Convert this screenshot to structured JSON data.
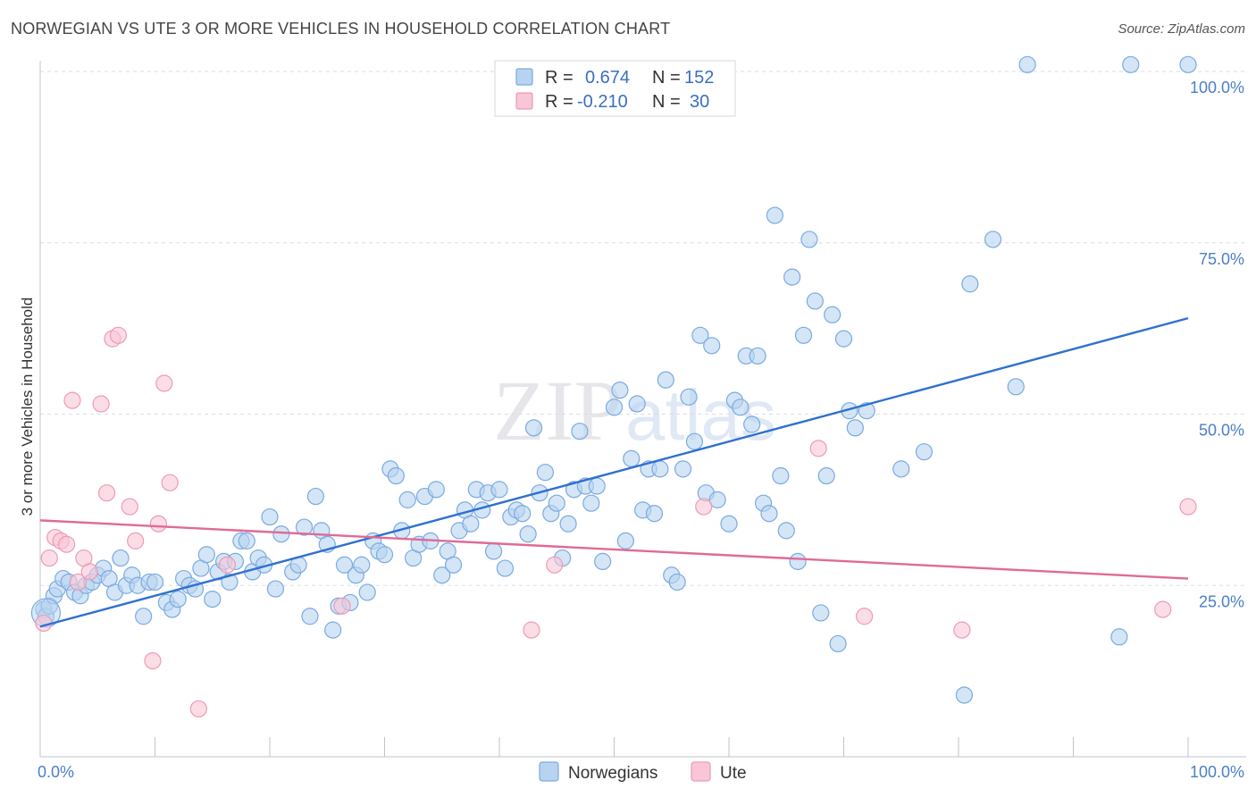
{
  "header": {
    "title": "NORWEGIAN VS UTE 3 OR MORE VEHICLES IN HOUSEHOLD CORRELATION CHART",
    "source": "Source: ZipAtlas.com"
  },
  "legend_top": {
    "rows": [
      {
        "r_label": "R =",
        "r_value": "0.674",
        "n_label": "N =",
        "n_value": "152"
      },
      {
        "r_label": "R =",
        "r_value": "-0.210",
        "n_label": "N =",
        "n_value": "30"
      }
    ]
  },
  "legend_bottom": {
    "items": [
      {
        "label": "Norwegians"
      },
      {
        "label": "Ute"
      }
    ]
  },
  "watermark": {
    "zip": "ZIP",
    "atlas": "atlas"
  },
  "colors": {
    "norwegians_fill": "#b8d3f0",
    "norwegians_stroke": "#7aaae0",
    "norwegians_line": "#2f70d0",
    "ute_fill": "#f8c6d6",
    "ute_stroke": "#ee9ab5",
    "ute_line": "#e06a95",
    "grid": "#d8dde6",
    "tick_text": "#4a7fc8"
  },
  "chart_data": {
    "type": "scatter",
    "title": "NORWEGIAN VS UTE 3 OR MORE VEHICLES IN HOUSEHOLD CORRELATION CHART",
    "xlabel": "",
    "ylabel": "3 or more Vehicles in Household",
    "xlim": [
      0,
      100
    ],
    "ylim": [
      0,
      100
    ],
    "x_tick_labels": [
      {
        "value": 0,
        "label": "0.0%"
      },
      {
        "value": 100,
        "label": "100.0%"
      }
    ],
    "y_tick_labels": [
      {
        "value": 25,
        "label": "25.0%"
      },
      {
        "value": 50,
        "label": "50.0%"
      },
      {
        "value": 75,
        "label": "75.0%"
      },
      {
        "value": 100,
        "label": "100.0%"
      }
    ],
    "grid": true,
    "legend_position": "top-center",
    "series": [
      {
        "name": "Norwegians",
        "r": 0.674,
        "n": 152,
        "trend": {
          "x": [
            0,
            100
          ],
          "y": [
            19,
            64
          ]
        },
        "points": [
          [
            0.3,
            21.5
          ],
          [
            0.5,
            20.5
          ],
          [
            0.8,
            22
          ],
          [
            1.2,
            23.5
          ],
          [
            1.5,
            24.5
          ],
          [
            2.0,
            26
          ],
          [
            2.5,
            25.5
          ],
          [
            3.0,
            24
          ],
          [
            3.5,
            23.5
          ],
          [
            4.0,
            25
          ],
          [
            4.5,
            25.5
          ],
          [
            5.0,
            26.5
          ],
          [
            5.5,
            27.5
          ],
          [
            6.0,
            26
          ],
          [
            6.5,
            24
          ],
          [
            7.0,
            29
          ],
          [
            7.5,
            25
          ],
          [
            8.0,
            26.5
          ],
          [
            8.5,
            25
          ],
          [
            9.0,
            20.5
          ],
          [
            9.5,
            25.5
          ],
          [
            10.0,
            25.5
          ],
          [
            11.0,
            22.5
          ],
          [
            11.5,
            21.5
          ],
          [
            12.0,
            23
          ],
          [
            12.5,
            26
          ],
          [
            13.0,
            25
          ],
          [
            13.5,
            24.5
          ],
          [
            14.0,
            27.5
          ],
          [
            14.5,
            29.5
          ],
          [
            15.0,
            23
          ],
          [
            15.5,
            27
          ],
          [
            16.0,
            28.5
          ],
          [
            16.5,
            25.5
          ],
          [
            17.0,
            28.5
          ],
          [
            17.5,
            31.5
          ],
          [
            18.0,
            31.5
          ],
          [
            18.5,
            27
          ],
          [
            19.0,
            29
          ],
          [
            19.5,
            28
          ],
          [
            20.0,
            35
          ],
          [
            20.5,
            24.5
          ],
          [
            21.0,
            32.5
          ],
          [
            22.0,
            27
          ],
          [
            22.5,
            28
          ],
          [
            23.0,
            33.5
          ],
          [
            23.5,
            20.5
          ],
          [
            24.0,
            38
          ],
          [
            24.5,
            33
          ],
          [
            25.0,
            31
          ],
          [
            25.5,
            18.5
          ],
          [
            26.0,
            22
          ],
          [
            26.5,
            28
          ],
          [
            27.0,
            22.5
          ],
          [
            27.5,
            26.5
          ],
          [
            28.0,
            28
          ],
          [
            28.5,
            24
          ],
          [
            29.0,
            31.5
          ],
          [
            29.5,
            30
          ],
          [
            30.0,
            29.5
          ],
          [
            30.5,
            42
          ],
          [
            31.0,
            41
          ],
          [
            31.5,
            33
          ],
          [
            32.0,
            37.5
          ],
          [
            32.5,
            29
          ],
          [
            33.0,
            31
          ],
          [
            33.5,
            38
          ],
          [
            34.0,
            31.5
          ],
          [
            34.5,
            39
          ],
          [
            35.0,
            26.5
          ],
          [
            35.5,
            30
          ],
          [
            36.0,
            28
          ],
          [
            36.5,
            33
          ],
          [
            37.0,
            36
          ],
          [
            37.5,
            34
          ],
          [
            38.0,
            39
          ],
          [
            38.5,
            36
          ],
          [
            39.0,
            38.5
          ],
          [
            39.5,
            30
          ],
          [
            40.0,
            39
          ],
          [
            40.5,
            27.5
          ],
          [
            41.0,
            35
          ],
          [
            41.5,
            36
          ],
          [
            42.0,
            35.5
          ],
          [
            42.5,
            32.5
          ],
          [
            43.0,
            48
          ],
          [
            43.5,
            38.5
          ],
          [
            44.0,
            41.5
          ],
          [
            44.5,
            35.5
          ],
          [
            45.0,
            37
          ],
          [
            45.5,
            29
          ],
          [
            46.0,
            34
          ],
          [
            46.5,
            39
          ],
          [
            47.0,
            47.5
          ],
          [
            47.5,
            39.5
          ],
          [
            48.0,
            37
          ],
          [
            48.5,
            39.5
          ],
          [
            49.0,
            28.5
          ],
          [
            50.0,
            51
          ],
          [
            50.5,
            53.5
          ],
          [
            51.0,
            31.5
          ],
          [
            51.5,
            43.5
          ],
          [
            52.0,
            51.5
          ],
          [
            52.5,
            36
          ],
          [
            53.0,
            42
          ],
          [
            53.5,
            35.5
          ],
          [
            54.0,
            42
          ],
          [
            54.5,
            55
          ],
          [
            55.0,
            26.5
          ],
          [
            55.5,
            25.5
          ],
          [
            56.0,
            42
          ],
          [
            56.5,
            52.5
          ],
          [
            57.0,
            46
          ],
          [
            57.5,
            61.5
          ],
          [
            58.0,
            38.5
          ],
          [
            58.5,
            60
          ],
          [
            59.0,
            37.5
          ],
          [
            60.0,
            34
          ],
          [
            60.5,
            52
          ],
          [
            61.0,
            51
          ],
          [
            61.5,
            58.5
          ],
          [
            62.0,
            48.5
          ],
          [
            62.5,
            58.5
          ],
          [
            63.0,
            37
          ],
          [
            63.5,
            35.5
          ],
          [
            64.0,
            79
          ],
          [
            64.5,
            41
          ],
          [
            65.0,
            33
          ],
          [
            65.5,
            70
          ],
          [
            66.0,
            28.5
          ],
          [
            66.5,
            61.5
          ],
          [
            67.0,
            75.5
          ],
          [
            67.5,
            66.5
          ],
          [
            68.0,
            21
          ],
          [
            68.5,
            41
          ],
          [
            69.0,
            64.5
          ],
          [
            69.5,
            16.5
          ],
          [
            70.0,
            61
          ],
          [
            70.5,
            50.5
          ],
          [
            71.0,
            48
          ],
          [
            72.0,
            50.5
          ],
          [
            75.0,
            42
          ],
          [
            77.0,
            44.5
          ],
          [
            80.5,
            9
          ],
          [
            81.0,
            69
          ],
          [
            83.0,
            75.5
          ],
          [
            85.0,
            54
          ],
          [
            86.0,
            101
          ],
          [
            95.0,
            101
          ],
          [
            94.0,
            17.5
          ],
          [
            100.0,
            101
          ]
        ]
      },
      {
        "name": "Ute",
        "r": -0.21,
        "n": 30,
        "trend": {
          "x": [
            0,
            100
          ],
          "y": [
            34.5,
            26
          ]
        },
        "points": [
          [
            0.3,
            19.5
          ],
          [
            0.8,
            29
          ],
          [
            1.3,
            32
          ],
          [
            1.8,
            31.5
          ],
          [
            2.3,
            31
          ],
          [
            2.8,
            52
          ],
          [
            3.3,
            25.5
          ],
          [
            3.8,
            29
          ],
          [
            4.3,
            27
          ],
          [
            5.3,
            51.5
          ],
          [
            5.8,
            38.5
          ],
          [
            6.3,
            61
          ],
          [
            6.8,
            61.5
          ],
          [
            7.8,
            36.5
          ],
          [
            8.3,
            31.5
          ],
          [
            9.8,
            14
          ],
          [
            10.3,
            34
          ],
          [
            10.8,
            54.5
          ],
          [
            11.3,
            40
          ],
          [
            13.8,
            7
          ],
          [
            16.3,
            28
          ],
          [
            26.3,
            22
          ],
          [
            42.8,
            18.5
          ],
          [
            44.8,
            28
          ],
          [
            57.8,
            36.5
          ],
          [
            67.8,
            45
          ],
          [
            71.8,
            20.5
          ],
          [
            80.3,
            18.5
          ],
          [
            97.8,
            21.5
          ],
          [
            100.0,
            36.5
          ]
        ]
      }
    ]
  }
}
